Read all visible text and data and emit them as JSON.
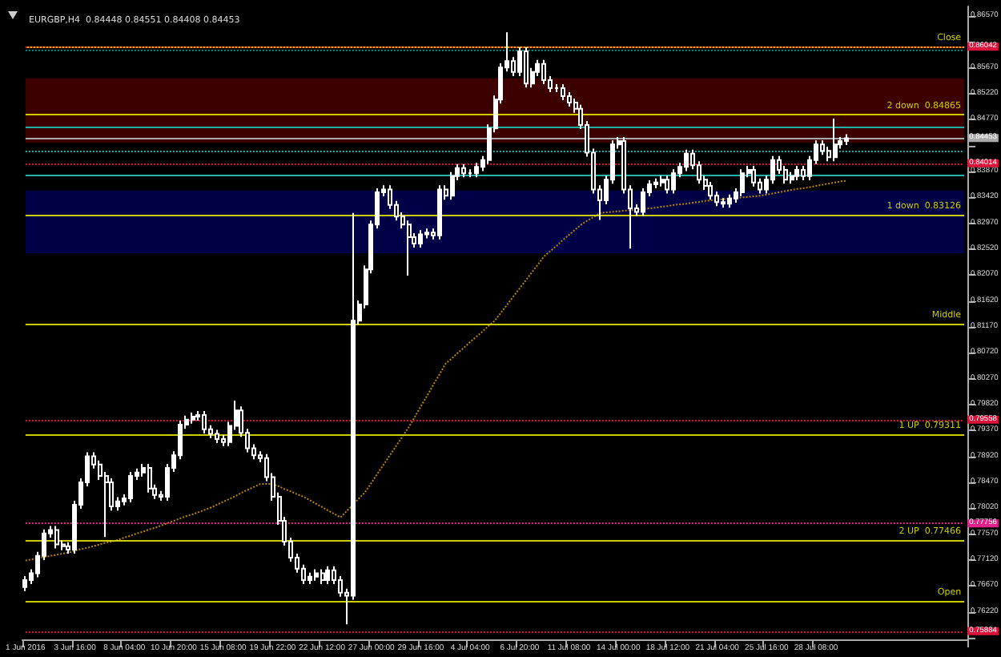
{
  "chart_data": {
    "type": "candlestick",
    "title": "EURGBP,H4  0.84448 0.84551 0.84408 0.84453",
    "categories": [
      "1 Jun 2016",
      null,
      null,
      null,
      null,
      null,
      null,
      null,
      "3 Jun 16:00",
      null,
      null,
      null,
      null,
      null,
      null,
      null,
      "8 Jun 04:00",
      null,
      null,
      null,
      null,
      null,
      null,
      null,
      "10 Jun 20:00",
      null,
      null,
      null,
      null,
      null,
      null,
      null,
      "15 Jun 08:00",
      null,
      null,
      null,
      null,
      null,
      null,
      null,
      "19 Jun 22:00",
      null,
      null,
      null,
      null,
      null,
      null,
      null,
      "22 Jun 12:00",
      null,
      null,
      null,
      null,
      null,
      null,
      null,
      "27 Jun 00:00",
      null,
      null,
      null,
      null,
      null,
      null,
      null,
      "29 Jun 16:00",
      null,
      null,
      null,
      null,
      null,
      null,
      null,
      "4 Jul 04:00",
      null,
      null,
      null,
      null,
      null,
      null,
      null,
      "6 Jul 20:00",
      null,
      null,
      null,
      null,
      null,
      null,
      null,
      "11 Jul 08:00",
      null,
      null,
      null,
      null,
      null,
      null,
      null,
      "14 Jul 00:00",
      null,
      null,
      null,
      null,
      null,
      null,
      null,
      "18 Jul 12:00",
      null,
      null,
      null,
      null,
      null,
      null,
      null,
      "21 Jul 04:00",
      null,
      null,
      null,
      null,
      null,
      null,
      null,
      "25 Jul 16:00",
      null,
      null,
      null,
      null,
      null,
      null,
      null,
      "28 Jul 08:00",
      null,
      null,
      null,
      null,
      null,
      null,
      null,
      null,
      null,
      null,
      null,
      null,
      null,
      null,
      null,
      null,
      null,
      null,
      null,
      null,
      null,
      null,
      null,
      null
    ],
    "ohlc": [
      [
        0.7665,
        0.7684,
        0.7658,
        0.7677
      ],
      [
        0.7677,
        0.7696,
        0.767,
        0.7689
      ],
      [
        0.7689,
        0.7726,
        0.7682,
        0.7719
      ],
      [
        0.7719,
        0.7765,
        0.7712,
        0.7758
      ],
      [
        0.7758,
        0.7771,
        0.7751,
        0.7764
      ],
      [
        0.7764,
        0.7771,
        0.7732,
        0.7739
      ],
      [
        0.7739,
        0.7746,
        0.7729,
        0.7736
      ],
      [
        0.7736,
        0.7743,
        0.7723,
        0.773
      ],
      [
        0.773,
        0.7815,
        0.7723,
        0.7808
      ],
      [
        0.7808,
        0.7854,
        0.7801,
        0.7847
      ],
      [
        0.7847,
        0.7899,
        0.784,
        0.7892
      ],
      [
        0.7892,
        0.7899,
        0.7871,
        0.7878
      ],
      [
        0.7878,
        0.7885,
        0.7851,
        0.7858
      ],
      [
        0.7858,
        0.7865,
        0.7752,
        0.7847
      ],
      [
        0.7847,
        0.7854,
        0.7798,
        0.7805
      ],
      [
        0.7805,
        0.7821,
        0.7798,
        0.7814
      ],
      [
        0.7814,
        0.7826,
        0.7807,
        0.7819
      ],
      [
        0.7819,
        0.7865,
        0.7812,
        0.7858
      ],
      [
        0.7858,
        0.7871,
        0.7851,
        0.7864
      ],
      [
        0.7864,
        0.7879,
        0.7857,
        0.7872
      ],
      [
        0.7872,
        0.7879,
        0.7829,
        0.7836
      ],
      [
        0.7836,
        0.7843,
        0.7818,
        0.7825
      ],
      [
        0.7825,
        0.7832,
        0.7815,
        0.7822
      ],
      [
        0.7822,
        0.7879,
        0.7815,
        0.7872
      ],
      [
        0.7872,
        0.7901,
        0.7865,
        0.7894
      ],
      [
        0.7894,
        0.7954,
        0.7887,
        0.7947
      ],
      [
        0.7947,
        0.7963,
        0.794,
        0.7956
      ],
      [
        0.7956,
        0.7968,
        0.7949,
        0.7961
      ],
      [
        0.7961,
        0.7971,
        0.7954,
        0.7964
      ],
      [
        0.7964,
        0.7971,
        0.7932,
        0.7939
      ],
      [
        0.7939,
        0.7946,
        0.7924,
        0.7931
      ],
      [
        0.7931,
        0.7938,
        0.7915,
        0.7922
      ],
      [
        0.7922,
        0.7929,
        0.791,
        0.7917
      ],
      [
        0.7917,
        0.7952,
        0.791,
        0.7945
      ],
      [
        0.7945,
        0.7989,
        0.7938,
        0.7972
      ],
      [
        0.7972,
        0.7979,
        0.7926,
        0.7933
      ],
      [
        0.7933,
        0.794,
        0.7899,
        0.7906
      ],
      [
        0.7906,
        0.7913,
        0.7887,
        0.7894
      ],
      [
        0.7894,
        0.7901,
        0.7882,
        0.7889
      ],
      [
        0.7889,
        0.7896,
        0.7849,
        0.7856
      ],
      [
        0.7856,
        0.7863,
        0.7815,
        0.7822
      ],
      [
        0.7822,
        0.7829,
        0.7773,
        0.778
      ],
      [
        0.778,
        0.7787,
        0.7737,
        0.7744
      ],
      [
        0.7744,
        0.7751,
        0.7709,
        0.7716
      ],
      [
        0.7716,
        0.7723,
        0.769,
        0.7697
      ],
      [
        0.7697,
        0.7704,
        0.767,
        0.7677
      ],
      [
        0.7677,
        0.769,
        0.767,
        0.7683
      ],
      [
        0.7683,
        0.7696,
        0.7676,
        0.7689
      ],
      [
        0.7689,
        0.7696,
        0.767,
        0.7677
      ],
      [
        0.7677,
        0.7701,
        0.767,
        0.7694
      ],
      [
        0.7694,
        0.7701,
        0.767,
        0.7677
      ],
      [
        0.7677,
        0.7684,
        0.7648,
        0.7655
      ],
      [
        0.7655,
        0.7662,
        0.76,
        0.765
      ],
      [
        0.765,
        0.8315,
        0.7643,
        0.8128
      ],
      [
        0.8128,
        0.8163,
        0.8121,
        0.8156
      ],
      [
        0.8156,
        0.8224,
        0.8149,
        0.8217
      ],
      [
        0.8217,
        0.8302,
        0.821,
        0.8295
      ],
      [
        0.8295,
        0.8358,
        0.8288,
        0.8351
      ],
      [
        0.8351,
        0.8363,
        0.8344,
        0.8356
      ],
      [
        0.8356,
        0.8363,
        0.8322,
        0.8329
      ],
      [
        0.8329,
        0.8336,
        0.8302,
        0.8309
      ],
      [
        0.8309,
        0.8316,
        0.8288,
        0.8295
      ],
      [
        0.8295,
        0.8302,
        0.8206,
        0.8273
      ],
      [
        0.8273,
        0.828,
        0.8255,
        0.8262
      ],
      [
        0.8262,
        0.8285,
        0.8255,
        0.8278
      ],
      [
        0.8278,
        0.8288,
        0.8271,
        0.8281
      ],
      [
        0.8281,
        0.8288,
        0.8269,
        0.8276
      ],
      [
        0.8276,
        0.8363,
        0.8269,
        0.8356
      ],
      [
        0.8356,
        0.8363,
        0.8338,
        0.8345
      ],
      [
        0.8345,
        0.8386,
        0.8338,
        0.8379
      ],
      [
        0.8379,
        0.84,
        0.8372,
        0.8393
      ],
      [
        0.8393,
        0.84,
        0.8377,
        0.8384
      ],
      [
        0.8384,
        0.8391,
        0.8377,
        0.8384
      ],
      [
        0.8384,
        0.8402,
        0.8377,
        0.8395
      ],
      [
        0.8395,
        0.8414,
        0.8388,
        0.8407
      ],
      [
        0.8407,
        0.8469,
        0.84,
        0.8462
      ],
      [
        0.8462,
        0.8519,
        0.8455,
        0.8512
      ],
      [
        0.8512,
        0.8575,
        0.8505,
        0.8568
      ],
      [
        0.8568,
        0.8629,
        0.8561,
        0.8579
      ],
      [
        0.8579,
        0.8586,
        0.8553,
        0.856
      ],
      [
        0.856,
        0.8603,
        0.8553,
        0.8596
      ],
      [
        0.8596,
        0.8603,
        0.8533,
        0.854
      ],
      [
        0.854,
        0.8567,
        0.8533,
        0.856
      ],
      [
        0.856,
        0.8581,
        0.8553,
        0.8574
      ],
      [
        0.8574,
        0.8581,
        0.8539,
        0.8546
      ],
      [
        0.8546,
        0.8553,
        0.8525,
        0.8532
      ],
      [
        0.8532,
        0.8539,
        0.8525,
        0.8532
      ],
      [
        0.8532,
        0.8539,
        0.8511,
        0.8518
      ],
      [
        0.8518,
        0.8525,
        0.85,
        0.8507
      ],
      [
        0.8507,
        0.8514,
        0.8489,
        0.8496
      ],
      [
        0.8496,
        0.8503,
        0.8461,
        0.8468
      ],
      [
        0.8468,
        0.8475,
        0.8413,
        0.842
      ],
      [
        0.842,
        0.8427,
        0.8349,
        0.8356
      ],
      [
        0.8356,
        0.8363,
        0.8303,
        0.8337
      ],
      [
        0.8337,
        0.838,
        0.833,
        0.8373
      ],
      [
        0.8373,
        0.8441,
        0.8366,
        0.8434
      ],
      [
        0.8434,
        0.8447,
        0.8427,
        0.844
      ],
      [
        0.844,
        0.8447,
        0.8349,
        0.8356
      ],
      [
        0.8356,
        0.8363,
        0.8253,
        0.8323
      ],
      [
        0.8323,
        0.833,
        0.831,
        0.8317
      ],
      [
        0.8317,
        0.8358,
        0.831,
        0.8351
      ],
      [
        0.8351,
        0.8372,
        0.8344,
        0.8365
      ],
      [
        0.8365,
        0.8375,
        0.8358,
        0.8368
      ],
      [
        0.8368,
        0.838,
        0.8361,
        0.8373
      ],
      [
        0.8373,
        0.838,
        0.8349,
        0.8356
      ],
      [
        0.8356,
        0.8391,
        0.8349,
        0.8384
      ],
      [
        0.8384,
        0.8402,
        0.8377,
        0.8395
      ],
      [
        0.8395,
        0.8425,
        0.8388,
        0.8418
      ],
      [
        0.8418,
        0.8425,
        0.8391,
        0.8398
      ],
      [
        0.8398,
        0.8405,
        0.8366,
        0.8373
      ],
      [
        0.8373,
        0.838,
        0.8355,
        0.8362
      ],
      [
        0.8362,
        0.8369,
        0.8338,
        0.8345
      ],
      [
        0.8345,
        0.8352,
        0.8327,
        0.8334
      ],
      [
        0.8334,
        0.8341,
        0.8324,
        0.8331
      ],
      [
        0.8331,
        0.8347,
        0.8324,
        0.834
      ],
      [
        0.834,
        0.8358,
        0.8333,
        0.8351
      ],
      [
        0.8351,
        0.8391,
        0.8344,
        0.8384
      ],
      [
        0.8384,
        0.8397,
        0.8377,
        0.839
      ],
      [
        0.839,
        0.8397,
        0.8361,
        0.8368
      ],
      [
        0.8368,
        0.8375,
        0.8349,
        0.8356
      ],
      [
        0.8356,
        0.838,
        0.8349,
        0.8373
      ],
      [
        0.8373,
        0.8414,
        0.8366,
        0.8407
      ],
      [
        0.8407,
        0.8414,
        0.8383,
        0.839
      ],
      [
        0.839,
        0.8397,
        0.8366,
        0.8373
      ],
      [
        0.8373,
        0.8386,
        0.8366,
        0.8379
      ],
      [
        0.8379,
        0.8397,
        0.8372,
        0.839
      ],
      [
        0.839,
        0.8397,
        0.8372,
        0.8379
      ],
      [
        0.8379,
        0.8414,
        0.8372,
        0.8407
      ],
      [
        0.8407,
        0.8441,
        0.84,
        0.8434
      ],
      [
        0.8434,
        0.8441,
        0.8416,
        0.8423
      ],
      [
        0.8423,
        0.843,
        0.8405,
        0.8412
      ],
      [
        0.8412,
        0.8479,
        0.8405,
        0.8434
      ],
      [
        0.8434,
        0.8447,
        0.8427,
        0.844
      ],
      [
        0.844,
        0.8452,
        0.8433,
        0.8445
      ],
      null,
      null,
      null,
      null,
      null,
      null,
      null,
      null,
      null,
      null,
      null,
      null,
      null,
      null,
      null,
      null,
      null,
      null,
      null
    ],
    "series": [
      {
        "type": "line",
        "color": "#b8860b",
        "line_style": "dotted",
        "values": [
          0.7711,
          0.7713,
          0.7715,
          0.7717,
          0.7719,
          0.7721,
          0.7723,
          0.7725,
          0.7728,
          0.7731,
          0.7733,
          0.7736,
          0.7739,
          0.7742,
          0.7744,
          0.7747,
          0.7751,
          0.7754,
          0.7758,
          0.7761,
          0.7765,
          0.7768,
          0.7772,
          0.7776,
          0.778,
          0.7784,
          0.7788,
          0.7791,
          0.7795,
          0.7799,
          0.7803,
          0.7808,
          0.7813,
          0.7818,
          0.7823,
          0.7829,
          0.7834,
          0.7839,
          0.7844,
          0.7844,
          0.7844,
          0.784,
          0.7835,
          0.7831,
          0.7826,
          0.7822,
          0.7816,
          0.781,
          0.7804,
          0.7798,
          0.7792,
          0.7786,
          0.7797,
          0.7808,
          0.7819,
          0.783,
          0.7846,
          0.7862,
          0.7878,
          0.7894,
          0.791,
          0.7926,
          0.7942,
          0.796,
          0.7979,
          0.7997,
          0.8016,
          0.8034,
          0.8053,
          0.8062,
          0.8072,
          0.8081,
          0.8091,
          0.81,
          0.8109,
          0.8119,
          0.8128,
          0.8142,
          0.8156,
          0.817,
          0.8184,
          0.8198,
          0.8212,
          0.8226,
          0.824,
          0.8249,
          0.8258,
          0.8268,
          0.8277,
          0.8286,
          0.8295,
          0.8302,
          0.8308,
          0.8315,
          0.8316,
          0.8317,
          0.8318,
          0.8319,
          0.832,
          0.8321,
          0.8322,
          0.8323,
          0.8324,
          0.8326,
          0.8327,
          0.8329,
          0.833,
          0.8331,
          0.8333,
          0.8334,
          0.8336,
          0.8337,
          0.8338,
          0.8339,
          0.834,
          0.8341,
          0.8342,
          0.8343,
          0.8344,
          0.8345,
          0.8347,
          0.8349,
          0.8351,
          0.8353,
          0.8355,
          0.8357,
          0.8358,
          0.836,
          0.8362,
          0.8364,
          0.8366,
          0.8368,
          0.837,
          0.8371,
          null,
          null,
          null,
          null,
          null,
          null,
          null,
          null,
          null,
          null,
          null,
          null,
          null,
          null,
          null,
          null,
          null,
          null,
          null
        ]
      }
    ],
    "ylim": [
      0.7574,
      0.8674
    ],
    "yticks": [
      {
        "value": 0.7577,
        "label": null
      },
      {
        "value": 0.7622,
        "label": "0.76220"
      },
      {
        "value": 0.7667,
        "label": "0.76670"
      },
      {
        "value": 0.7712,
        "label": "0.77120"
      },
      {
        "value": 0.7757,
        "label": "0.77570"
      },
      {
        "value": 0.7802,
        "label": "0.78020"
      },
      {
        "value": 0.7847,
        "label": "0.78470"
      },
      {
        "value": 0.7892,
        "label": "0.78920"
      },
      {
        "value": 0.7937,
        "label": "0.79370"
      },
      {
        "value": 0.7982,
        "label": "0.79820"
      },
      {
        "value": 0.8027,
        "label": "0.80270"
      },
      {
        "value": 0.8072,
        "label": "0.80720"
      },
      {
        "value": 0.8117,
        "label": "0.81170"
      },
      {
        "value": 0.8162,
        "label": "0.81620"
      },
      {
        "value": 0.8207,
        "label": "0.82070"
      },
      {
        "value": 0.8252,
        "label": "0.82520"
      },
      {
        "value": 0.8297,
        "label": "0.82970"
      },
      {
        "value": 0.8342,
        "label": "0.83420"
      },
      {
        "value": 0.8387,
        "label": "0.83870"
      },
      {
        "value": 0.8432,
        "label": null
      },
      {
        "value": 0.8477,
        "label": "0.84770"
      },
      {
        "value": 0.8522,
        "label": "0.85220"
      },
      {
        "value": 0.8567,
        "label": "0.85670"
      },
      {
        "value": 0.8612,
        "label": null
      },
      {
        "value": 0.8657,
        "label": "0.86570"
      }
    ],
    "bands": [
      {
        "axis": "y",
        "from": 0.8437,
        "to": 0.8549,
        "color": "#3d0000"
      },
      {
        "axis": "y",
        "from": 0.8245,
        "to": 0.8354,
        "color": "#000046"
      }
    ],
    "ref_lines": [
      {
        "axis": "y",
        "value": 0.8599,
        "label": null,
        "color": "#008b8b",
        "line_style": "dotted"
      },
      {
        "axis": "y",
        "value": 0.8465,
        "label": null,
        "color": "#20b2aa",
        "line_style": "solid"
      },
      {
        "axis": "y",
        "value": 0.8424,
        "label": null,
        "color": "#20b2aa",
        "line_style": "dotted"
      },
      {
        "axis": "y",
        "value": 0.8382,
        "label": null,
        "color": "#20b2aa",
        "line_style": "solid"
      },
      {
        "axis": "y",
        "value": 0.86042,
        "label": "Close",
        "color": "#cccc00",
        "line_style": "solid"
      },
      {
        "axis": "y",
        "value": 0.84865,
        "label": "2 down  0.84865",
        "color": "#cccc00",
        "line_style": "solid"
      },
      {
        "axis": "y",
        "value": 0.83126,
        "label": "1 down  0.83126",
        "color": "#cccc00",
        "line_style": "solid"
      },
      {
        "axis": "y",
        "value": 0.81227,
        "label": "Middle",
        "color": "#cccc00",
        "line_style": "solid"
      },
      {
        "axis": "y",
        "value": 0.79311,
        "label": "1 UP  0.79311",
        "color": "#cccc00",
        "line_style": "solid"
      },
      {
        "axis": "y",
        "value": 0.77466,
        "label": "2 UP  0.77466",
        "color": "#cccc00",
        "line_style": "solid"
      },
      {
        "axis": "y",
        "value": 0.76412,
        "label": "Open",
        "color": "#cccc00",
        "line_style": "solid"
      },
      {
        "axis": "y",
        "value": 0.86042,
        "label": "0.86042",
        "color": "#dc143c",
        "line_style": "dotted"
      },
      {
        "axis": "y",
        "value": 0.84453,
        "label": "0.84453",
        "color": "#aaaaaa",
        "line_style": "solid"
      },
      {
        "axis": "y",
        "value": 0.84014,
        "label": "0.84014",
        "color": "#dc143c",
        "line_style": "dotted"
      },
      {
        "axis": "y",
        "value": 0.79558,
        "label": "0.79558",
        "color": "#dc143c",
        "line_style": "dotted"
      },
      {
        "axis": "y",
        "value": 0.77756,
        "label": "0.77756",
        "color": "#e0218a",
        "line_style": "dotted"
      },
      {
        "axis": "y",
        "value": 0.75884,
        "label": "0.75884",
        "color": "#dc143c",
        "line_style": "dotted"
      }
    ]
  }
}
